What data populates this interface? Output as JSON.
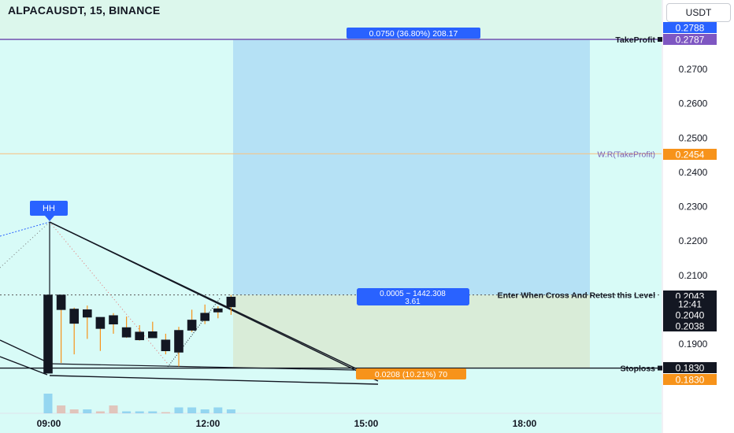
{
  "header": {
    "symbol_line": "ALPACAUSDT, 15, BINANCE",
    "currency": "USDT"
  },
  "colors": {
    "background_mint": "#dcf7ec",
    "plot_cyan": "#d8fbf7",
    "profit_zone": "#b5e1f5",
    "loss_zone": "#d9ecd8",
    "takeprofit_line": "#7a5fb5",
    "wr_line": "#f5c48a",
    "price_badge_black": "#131722",
    "badge_orange": "#f7931a",
    "badge_blue": "#2962ff",
    "badge_purple": "#7e57c2"
  },
  "chart_data": {
    "type": "candlestick",
    "symbol": "ALPACAUSDT",
    "interval": "15",
    "exchange": "BINANCE",
    "y_axis": {
      "ticks": [
        "0.2700",
        "0.2600",
        "0.2500",
        "0.2400",
        "0.2300",
        "0.2200",
        "0.2100",
        "0.1900"
      ],
      "ylim": [
        0.168,
        0.2895
      ]
    },
    "x_axis": {
      "ticks": [
        "09:00",
        "12:00",
        "15:00",
        "18:00"
      ]
    },
    "candles": [
      {
        "o": 0.1815,
        "h": 0.2043,
        "l": 0.1815,
        "c": 0.2043
      },
      {
        "o": 0.2043,
        "h": 0.2043,
        "l": 0.1845,
        "c": 0.2
      },
      {
        "o": 0.2002,
        "h": 0.2006,
        "l": 0.187,
        "c": 0.196
      },
      {
        "o": 0.2,
        "h": 0.2012,
        "l": 0.1915,
        "c": 0.1978
      },
      {
        "o": 0.1978,
        "h": 0.1978,
        "l": 0.188,
        "c": 0.1945
      },
      {
        "o": 0.1983,
        "h": 0.199,
        "l": 0.193,
        "c": 0.1958
      },
      {
        "o": 0.1948,
        "h": 0.198,
        "l": 0.1918,
        "c": 0.192
      },
      {
        "o": 0.1912,
        "h": 0.1955,
        "l": 0.191,
        "c": 0.1935
      },
      {
        "o": 0.1936,
        "h": 0.1965,
        "l": 0.1922,
        "c": 0.1918
      },
      {
        "o": 0.1912,
        "h": 0.193,
        "l": 0.187,
        "c": 0.188
      },
      {
        "o": 0.1876,
        "h": 0.195,
        "l": 0.1835,
        "c": 0.194
      },
      {
        "o": 0.194,
        "h": 0.2,
        "l": 0.1935,
        "c": 0.197
      },
      {
        "o": 0.1968,
        "h": 0.2015,
        "l": 0.1958,
        "c": 0.199
      },
      {
        "o": 0.1993,
        "h": 0.201,
        "l": 0.1975,
        "c": 0.2003
      },
      {
        "o": 0.2008,
        "h": 0.2043,
        "l": 0.1985,
        "c": 0.2037
      }
    ],
    "volume_bars": [
      {
        "v": 5,
        "up": true
      },
      {
        "v": 2,
        "up": false
      },
      {
        "v": 1,
        "up": false
      },
      {
        "v": 1,
        "up": true
      },
      {
        "v": 0.5,
        "up": false
      },
      {
        "v": 2,
        "up": false
      },
      {
        "v": 0.5,
        "up": true
      },
      {
        "v": 0.5,
        "up": true
      },
      {
        "v": 0.5,
        "up": true
      },
      {
        "v": 0.3,
        "up": false
      },
      {
        "v": 1.5,
        "up": true
      },
      {
        "v": 1.5,
        "up": true
      },
      {
        "v": 1,
        "up": true
      },
      {
        "v": 1.5,
        "up": true
      },
      {
        "v": 1,
        "up": true
      }
    ],
    "levels": {
      "take_profit": 0.2787,
      "wr_take_profit": 0.2454,
      "entry": 0.2043,
      "stoploss": 0.183
    },
    "position_tool": {
      "profit_label": "0.0750 (36.80%) 208.17",
      "entry_label_line1": "0.0005 ~ 1442.308",
      "entry_label_line2": "3.61",
      "loss_label": "0.0208 (10.21%) 70"
    },
    "annotations": {
      "takeprofit_text": "TakeProfit",
      "wr_text": "W.R(TakeProfit)",
      "entry_text": "Enter When Cross And Retest this Level",
      "stoploss_text": "Stoploss",
      "hh_text": "HH"
    },
    "axis_badges": [
      {
        "text": "0.2788",
        "style": "blue"
      },
      {
        "text": "0.2787",
        "style": "purple"
      },
      {
        "text": "0.2454",
        "style": "orange"
      },
      {
        "text": "0.2043",
        "style": "black"
      },
      {
        "text": "12:41",
        "style": "black"
      },
      {
        "text": "0.2040",
        "style": "black"
      },
      {
        "text": "0.2038",
        "style": "black"
      },
      {
        "text": "0.1830",
        "style": "black"
      },
      {
        "text": "0.1830",
        "style": "orange"
      }
    ]
  }
}
